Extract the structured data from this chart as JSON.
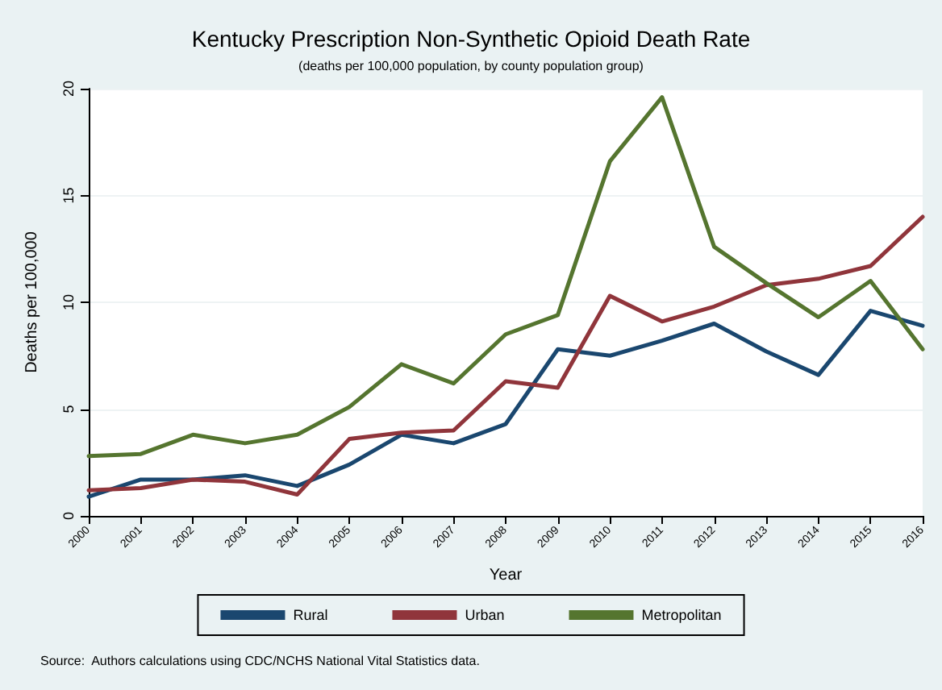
{
  "chart_data": {
    "type": "line",
    "title": "Kentucky Prescription Non-Synthetic Opioid Death Rate",
    "subtitle": "(deaths per 100,000 population, by county population group)",
    "xlabel": "Year",
    "ylabel": "Deaths per 100,000",
    "categories": [
      "2000",
      "2001",
      "2002",
      "2003",
      "2004",
      "2005",
      "2006",
      "2007",
      "2008",
      "2009",
      "2010",
      "2011",
      "2012",
      "2013",
      "2014",
      "2015",
      "2016"
    ],
    "series": [
      {
        "name": "Rural",
        "color": "#1a476f",
        "values": [
          0.9,
          1.7,
          1.7,
          1.9,
          1.4,
          2.4,
          3.8,
          3.4,
          4.3,
          7.8,
          7.5,
          8.2,
          9.0,
          7.7,
          6.6,
          9.6,
          8.9
        ]
      },
      {
        "name": "Urban",
        "color": "#90353b",
        "values": [
          1.2,
          1.3,
          1.7,
          1.6,
          1.0,
          3.6,
          3.9,
          4.0,
          6.3,
          6.0,
          10.3,
          9.1,
          9.8,
          10.8,
          11.1,
          11.7,
          14.0
        ]
      },
      {
        "name": "Metropolitan",
        "color": "#55752f",
        "values": [
          2.8,
          2.9,
          3.8,
          3.4,
          3.8,
          5.1,
          7.1,
          6.2,
          8.5,
          9.4,
          16.6,
          19.6,
          12.6,
          10.9,
          9.3,
          11.0,
          7.8
        ]
      }
    ],
    "ylim": [
      0,
      20
    ],
    "yticks": [
      0,
      5,
      10,
      15,
      20
    ],
    "grid": "y",
    "legend": "bottom",
    "marker": "none",
    "line_style": "solid",
    "annotations": [
      "Source:  Authors calculations using CDC/NCHS National Vital Statistics data."
    ]
  }
}
